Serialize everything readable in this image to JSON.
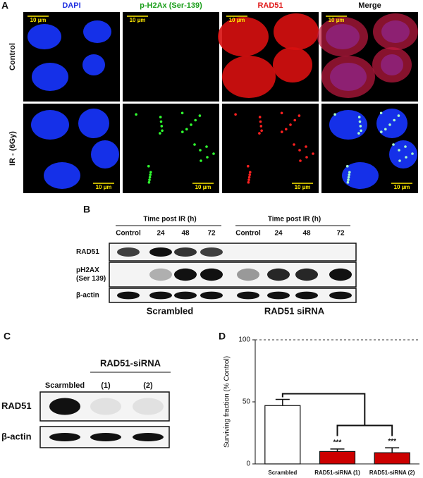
{
  "panels": {
    "a": {
      "letter": "A",
      "columns": [
        "DAPI",
        "p-H2Ax (Ser-139)",
        "RAD51",
        "Merge"
      ],
      "rows": [
        "Control",
        "IR - (6Gy)"
      ],
      "scale_bar": "10 µm"
    },
    "b": {
      "letter": "B",
      "time_header": "Time post IR (h)",
      "lanes": [
        "Control",
        "24",
        "48",
        "72"
      ],
      "rows": [
        [
          "RAD51"
        ],
        [
          "pH2AX",
          "(Ser 139)"
        ],
        [
          "β-actin"
        ]
      ],
      "groups": [
        "Scrambled",
        "RAD51 siRNA"
      ]
    },
    "c": {
      "letter": "C",
      "group": "RAD51-siRNA",
      "lanes": [
        "Scarmbled",
        "(1)",
        "(2)"
      ],
      "rows": [
        "RAD51",
        "β-actin"
      ]
    }
  },
  "chart_data": {
    "letter": "D",
    "type": "bar",
    "ylabel": "Surviving fraction (% Control)",
    "categories": [
      "Scrambled",
      "RAD51-siRNA (1)",
      "RAD51-siRNA (2)"
    ],
    "values": [
      47,
      10,
      9
    ],
    "errors": [
      5,
      2,
      4
    ],
    "colors": [
      "#ffffff",
      "#cc0000",
      "#cc0000"
    ],
    "significance": [
      null,
      "***",
      "***"
    ],
    "ylim": [
      0,
      100
    ],
    "yticks": [
      0,
      50,
      100
    ],
    "reference_line": 100
  }
}
